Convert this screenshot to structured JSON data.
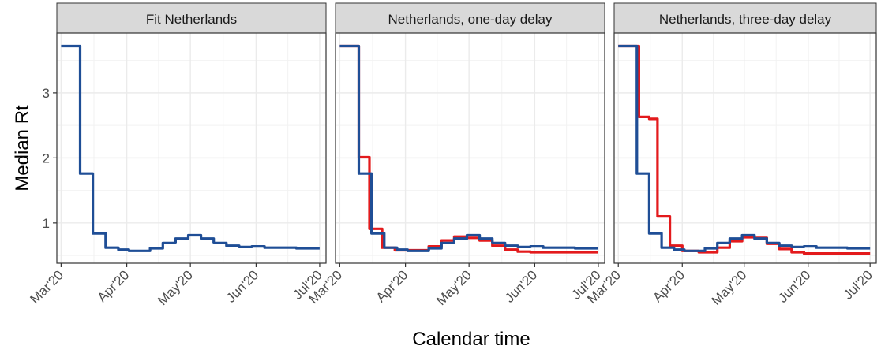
{
  "chart_data": {
    "type": "line",
    "ylabel": "Median Rt",
    "xlabel": "Calendar time",
    "x_ticks": [
      "Mar'20",
      "Apr'20",
      "May'20",
      "Jun'20",
      "Jul'20"
    ],
    "y_ticks": [
      1,
      2,
      3
    ],
    "xlim": [
      "2020-02-28",
      "2020-07-04"
    ],
    "ylim": [
      0.38,
      3.92
    ],
    "grid": true,
    "colors": {
      "blue": "#1f4e96",
      "red": "#e31a1c"
    },
    "panels": [
      {
        "strip": "Fit Netherlands",
        "series": [
          {
            "color": "blue",
            "x": [
              "2020-03-01",
              "2020-03-10",
              "2020-03-10",
              "2020-03-16",
              "2020-03-16",
              "2020-03-22",
              "2020-03-22",
              "2020-03-28",
              "2020-03-28",
              "2020-04-02",
              "2020-04-02",
              "2020-04-12",
              "2020-04-12",
              "2020-04-18",
              "2020-04-18",
              "2020-04-24",
              "2020-04-24",
              "2020-04-30",
              "2020-04-30",
              "2020-05-06",
              "2020-05-06",
              "2020-05-12",
              "2020-05-12",
              "2020-05-18",
              "2020-05-18",
              "2020-05-24",
              "2020-05-24",
              "2020-05-30",
              "2020-05-30",
              "2020-06-05",
              "2020-06-05",
              "2020-06-20",
              "2020-06-20",
              "2020-07-01"
            ],
            "y": [
              3.72,
              3.72,
              1.76,
              1.76,
              0.84,
              0.84,
              0.62,
              0.62,
              0.59,
              0.59,
              0.57,
              0.57,
              0.61,
              0.61,
              0.69,
              0.69,
              0.76,
              0.76,
              0.81,
              0.81,
              0.76,
              0.76,
              0.69,
              0.69,
              0.65,
              0.65,
              0.63,
              0.63,
              0.64,
              0.64,
              0.62,
              0.62,
              0.61,
              0.61
            ]
          }
        ]
      },
      {
        "strip": "Netherlands, one-day delay",
        "series": [
          {
            "color": "red",
            "x": [
              "2020-03-01",
              "2020-03-10",
              "2020-03-10",
              "2020-03-15",
              "2020-03-15",
              "2020-03-21",
              "2020-03-21",
              "2020-03-27",
              "2020-03-27",
              "2020-04-02",
              "2020-04-02",
              "2020-04-12",
              "2020-04-12",
              "2020-04-18",
              "2020-04-18",
              "2020-04-24",
              "2020-04-24",
              "2020-04-30",
              "2020-04-30",
              "2020-05-06",
              "2020-05-06",
              "2020-05-12",
              "2020-05-12",
              "2020-05-18",
              "2020-05-18",
              "2020-05-24",
              "2020-05-24",
              "2020-05-30",
              "2020-05-30",
              "2020-06-05",
              "2020-06-05",
              "2020-07-01"
            ],
            "y": [
              3.72,
              3.72,
              2.01,
              2.01,
              0.91,
              0.91,
              0.62,
              0.62,
              0.58,
              0.58,
              0.58,
              0.58,
              0.64,
              0.64,
              0.73,
              0.73,
              0.79,
              0.79,
              0.77,
              0.77,
              0.73,
              0.73,
              0.65,
              0.65,
              0.59,
              0.59,
              0.56,
              0.56,
              0.55,
              0.55,
              0.55,
              0.55
            ]
          },
          {
            "color": "blue",
            "x": [
              "2020-03-01",
              "2020-03-10",
              "2020-03-10",
              "2020-03-16",
              "2020-03-16",
              "2020-03-22",
              "2020-03-22",
              "2020-03-28",
              "2020-03-28",
              "2020-04-02",
              "2020-04-02",
              "2020-04-12",
              "2020-04-12",
              "2020-04-18",
              "2020-04-18",
              "2020-04-24",
              "2020-04-24",
              "2020-04-30",
              "2020-04-30",
              "2020-05-06",
              "2020-05-06",
              "2020-05-12",
              "2020-05-12",
              "2020-05-18",
              "2020-05-18",
              "2020-05-24",
              "2020-05-24",
              "2020-05-30",
              "2020-05-30",
              "2020-06-05",
              "2020-06-05",
              "2020-06-20",
              "2020-06-20",
              "2020-07-01"
            ],
            "y": [
              3.72,
              3.72,
              1.76,
              1.76,
              0.84,
              0.84,
              0.62,
              0.62,
              0.59,
              0.59,
              0.57,
              0.57,
              0.61,
              0.61,
              0.69,
              0.69,
              0.76,
              0.76,
              0.81,
              0.81,
              0.76,
              0.76,
              0.69,
              0.69,
              0.65,
              0.65,
              0.63,
              0.63,
              0.64,
              0.64,
              0.62,
              0.62,
              0.61,
              0.61
            ]
          }
        ]
      },
      {
        "strip": "Netherlands, three-day delay",
        "series": [
          {
            "color": "red",
            "x": [
              "2020-03-01",
              "2020-03-11",
              "2020-03-11",
              "2020-03-16",
              "2020-03-16",
              "2020-03-20",
              "2020-03-20",
              "2020-03-26",
              "2020-03-26",
              "2020-04-01",
              "2020-04-01",
              "2020-04-09",
              "2020-04-09",
              "2020-04-18",
              "2020-04-18",
              "2020-04-24",
              "2020-04-24",
              "2020-04-30",
              "2020-04-30",
              "2020-05-06",
              "2020-05-06",
              "2020-05-12",
              "2020-05-12",
              "2020-05-18",
              "2020-05-18",
              "2020-05-24",
              "2020-05-24",
              "2020-05-30",
              "2020-05-30",
              "2020-06-05",
              "2020-06-05",
              "2020-07-01"
            ],
            "y": [
              3.72,
              3.72,
              2.63,
              2.63,
              2.6,
              2.6,
              1.1,
              1.1,
              0.65,
              0.65,
              0.57,
              0.57,
              0.55,
              0.55,
              0.62,
              0.62,
              0.72,
              0.72,
              0.78,
              0.78,
              0.77,
              0.77,
              0.68,
              0.68,
              0.6,
              0.6,
              0.55,
              0.55,
              0.53,
              0.53,
              0.53,
              0.53
            ]
          },
          {
            "color": "blue",
            "x": [
              "2020-03-01",
              "2020-03-10",
              "2020-03-10",
              "2020-03-16",
              "2020-03-16",
              "2020-03-22",
              "2020-03-22",
              "2020-03-28",
              "2020-03-28",
              "2020-04-02",
              "2020-04-02",
              "2020-04-12",
              "2020-04-12",
              "2020-04-18",
              "2020-04-18",
              "2020-04-24",
              "2020-04-24",
              "2020-04-30",
              "2020-04-30",
              "2020-05-06",
              "2020-05-06",
              "2020-05-12",
              "2020-05-12",
              "2020-05-18",
              "2020-05-18",
              "2020-05-24",
              "2020-05-24",
              "2020-05-30",
              "2020-05-30",
              "2020-06-05",
              "2020-06-05",
              "2020-06-20",
              "2020-06-20",
              "2020-07-01"
            ],
            "y": [
              3.72,
              3.72,
              1.76,
              1.76,
              0.84,
              0.84,
              0.62,
              0.62,
              0.59,
              0.59,
              0.57,
              0.57,
              0.61,
              0.61,
              0.69,
              0.69,
              0.76,
              0.76,
              0.81,
              0.81,
              0.76,
              0.76,
              0.69,
              0.69,
              0.65,
              0.65,
              0.63,
              0.63,
              0.64,
              0.64,
              0.62,
              0.62,
              0.61,
              0.61
            ]
          }
        ]
      }
    ]
  }
}
